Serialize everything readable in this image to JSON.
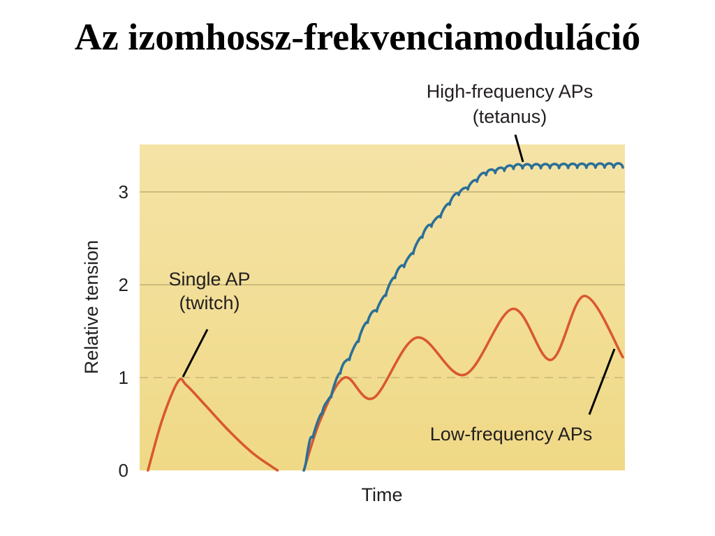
{
  "page_title": "Az izomhossz-frekvenciamoduláció",
  "chart_data": {
    "type": "line",
    "title": "",
    "xlabel": "Time",
    "ylabel": "Relative tension",
    "ylim": [
      0,
      3.5
    ],
    "yticks": [
      {
        "value": 0,
        "label": "0"
      },
      {
        "value": 1,
        "label": "1"
      },
      {
        "value": 2,
        "label": "2"
      },
      {
        "value": 3,
        "label": "3"
      }
    ],
    "grid": true,
    "reference_line": {
      "value": 1,
      "style": "dashed"
    },
    "x_units": "arbitrary time (0–10)",
    "colors": {
      "plot_background": "#f2de90",
      "twitch_and_low_frequency": "#d9582f",
      "tetanus": "#2a6f97",
      "grid": "#b5a36a"
    },
    "series": [
      {
        "name": "Single AP",
        "color": "#d9582f",
        "points": [
          [
            0.1,
            0.0
          ],
          [
            0.4,
            0.55
          ],
          [
            0.73,
            0.96
          ],
          [
            0.9,
            0.92
          ],
          [
            1.3,
            0.7
          ],
          [
            1.8,
            0.42
          ],
          [
            2.3,
            0.18
          ],
          [
            2.8,
            0.0
          ]
        ]
      },
      {
        "name": "Low-frequency APs",
        "color": "#d9582f",
        "points": [
          [
            3.35,
            0.0
          ],
          [
            3.7,
            0.55
          ],
          [
            4.2,
            1.0
          ],
          [
            4.8,
            0.78
          ],
          [
            5.7,
            1.43
          ],
          [
            6.7,
            1.03
          ],
          [
            7.7,
            1.74
          ],
          [
            8.5,
            1.19
          ],
          [
            9.2,
            1.88
          ],
          [
            10.0,
            1.22
          ]
        ]
      },
      {
        "name": "High-frequency APs",
        "color": "#2a6f97",
        "points": [
          [
            3.35,
            0.0
          ],
          [
            3.5,
            0.35
          ],
          [
            3.8,
            0.7
          ],
          [
            4.2,
            1.15
          ],
          [
            4.8,
            1.7
          ],
          [
            5.4,
            2.2
          ],
          [
            6.0,
            2.65
          ],
          [
            6.6,
            3.0
          ],
          [
            7.2,
            3.22
          ],
          [
            7.8,
            3.28
          ],
          [
            10.0,
            3.29
          ]
        ]
      }
    ],
    "annotations": [
      {
        "lines": [
          "Single AP",
          "(twitch)"
        ],
        "series": "Single AP"
      },
      {
        "lines": [
          "Low-frequency APs"
        ],
        "series": "Low-frequency APs"
      },
      {
        "lines": [
          "High-frequency APs",
          "(tetanus)"
        ],
        "series": "High-frequency APs"
      }
    ]
  }
}
